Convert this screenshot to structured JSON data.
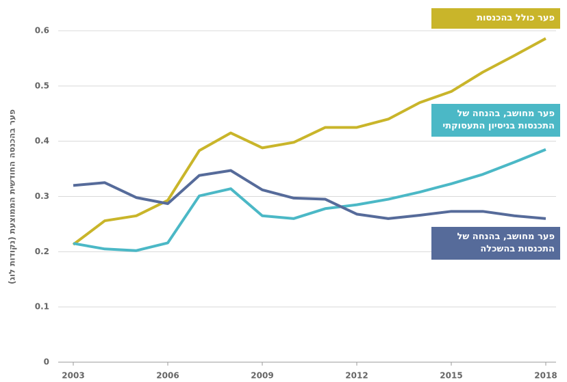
{
  "chart_data": {
    "type": "line",
    "y_label": "פער בהכנסה החודשית הממוצעת (נקודות לוג)",
    "x": [
      2003,
      2004,
      2005,
      2006,
      2007,
      2008,
      2009,
      2010,
      2011,
      2012,
      2013,
      2014,
      2015,
      2016,
      2017,
      2018
    ],
    "series": [
      {
        "name": "פער כולל בהכנסות",
        "color": "#c9b52a",
        "values": [
          0.213,
          0.256,
          0.265,
          0.293,
          0.383,
          0.415,
          0.388,
          0.398,
          0.425,
          0.425,
          0.44,
          0.47,
          0.49,
          0.525,
          0.555,
          0.586
        ]
      },
      {
        "name": "פער מחושב, בהנחה של התכנסות בניסיון התעסוקתי",
        "color": "#4bb8c6",
        "values": [
          0.215,
          0.205,
          0.202,
          0.216,
          0.301,
          0.314,
          0.265,
          0.26,
          0.278,
          0.285,
          0.295,
          0.308,
          0.323,
          0.34,
          0.362,
          0.385
        ]
      },
      {
        "name": "פער מחושב, בהנחה של התכנסות בהשכלה",
        "color": "#566b9a",
        "values": [
          0.32,
          0.325,
          0.298,
          0.287,
          0.338,
          0.347,
          0.312,
          0.297,
          0.295,
          0.268,
          0.26,
          0.266,
          0.273,
          0.273,
          0.265,
          0.26
        ]
      }
    ],
    "xlim": [
      2003,
      2018
    ],
    "xticks": [
      2003,
      2006,
      2009,
      2012,
      2015,
      2018
    ],
    "ylim": [
      0,
      0.6
    ],
    "yticks": [
      0,
      0.1,
      0.2,
      0.3,
      0.4,
      0.5,
      0.6
    ],
    "grid": true
  }
}
